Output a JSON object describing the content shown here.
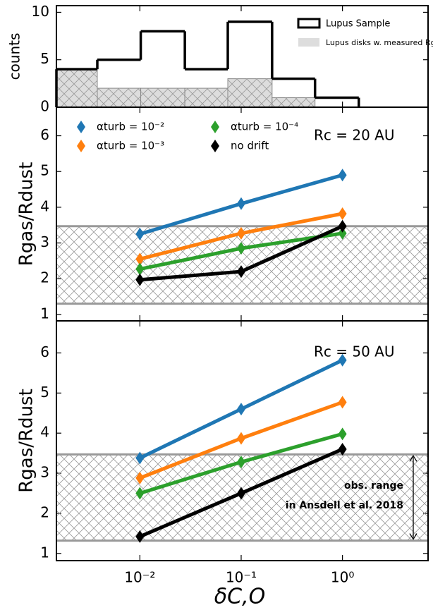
{
  "chart_data": [
    {
      "type": "histogram",
      "ylabel": "counts",
      "xscale": "log",
      "xlim": [
        0.0015,
        7
      ],
      "ylim": [
        0,
        10.7
      ],
      "yticks": [
        0,
        5,
        10
      ],
      "bins": [
        0.0015,
        0.0038,
        0.0102,
        0.0278,
        0.0738,
        0.202,
        0.536,
        1.45
      ],
      "series": [
        {
          "name": "Lupus Sample",
          "color": "#000000",
          "values": [
            4,
            5,
            8,
            4,
            9,
            3,
            1
          ]
        },
        {
          "name": "Lupus disks w. measured Rgas",
          "color": "#dddddd",
          "values": [
            4,
            2,
            2,
            2,
            3,
            1,
            0
          ]
        }
      ],
      "legend": "upper right"
    },
    {
      "type": "line",
      "ylabel": "Rgas/Rdust",
      "xscale": "log",
      "xlim": [
        0.0015,
        7
      ],
      "ylim": [
        0.82,
        6.8
      ],
      "yticks": [
        1,
        2,
        3,
        4,
        5,
        6
      ],
      "x": [
        0.01,
        0.1,
        1
      ],
      "shaded_range": [
        1.3,
        3.47
      ],
      "series": [
        {
          "name": "αturb = 10⁻²",
          "color": "#1f77b4",
          "values": [
            3.25,
            4.1,
            4.9
          ]
        },
        {
          "name": "αturb = 10⁻³",
          "color": "#ff7f0e",
          "values": [
            2.55,
            3.27,
            3.82
          ]
        },
        {
          "name": "αturb = 10⁻⁴",
          "color": "#2ca02c",
          "values": [
            2.27,
            2.85,
            3.27
          ]
        },
        {
          "name": "no drift",
          "color": "#000000",
          "values": [
            1.97,
            2.2,
            3.47
          ]
        }
      ],
      "legend": "upper left",
      "annotations": [
        "Rc = 20 AU"
      ]
    },
    {
      "type": "line",
      "ylabel": "Rgas/Rdust",
      "xlabel": "δC,O",
      "xscale": "log",
      "xlim": [
        0.0015,
        7
      ],
      "ylim": [
        0.82,
        6.8
      ],
      "yticks": [
        1,
        2,
        3,
        4,
        5,
        6
      ],
      "xticks": [
        {
          "value": 0.01,
          "label": "10⁻²"
        },
        {
          "value": 0.1,
          "label": "10⁻¹"
        },
        {
          "value": 1,
          "label": "10⁰"
        }
      ],
      "x": [
        0.01,
        0.1,
        1
      ],
      "shaded_range": [
        1.32,
        3.47
      ],
      "series": [
        {
          "color": "#1f77b4",
          "values": [
            3.38,
            4.6,
            5.82
          ]
        },
        {
          "color": "#ff7f0e",
          "values": [
            2.88,
            3.87,
            4.77
          ]
        },
        {
          "color": "#2ca02c",
          "values": [
            2.5,
            3.28,
            3.98
          ]
        },
        {
          "color": "#000000",
          "values": [
            1.42,
            2.5,
            3.6
          ]
        }
      ],
      "annotations": [
        "Rc = 50 AU",
        "obs. range",
        "in Ansdell et al. 2018"
      ]
    }
  ]
}
